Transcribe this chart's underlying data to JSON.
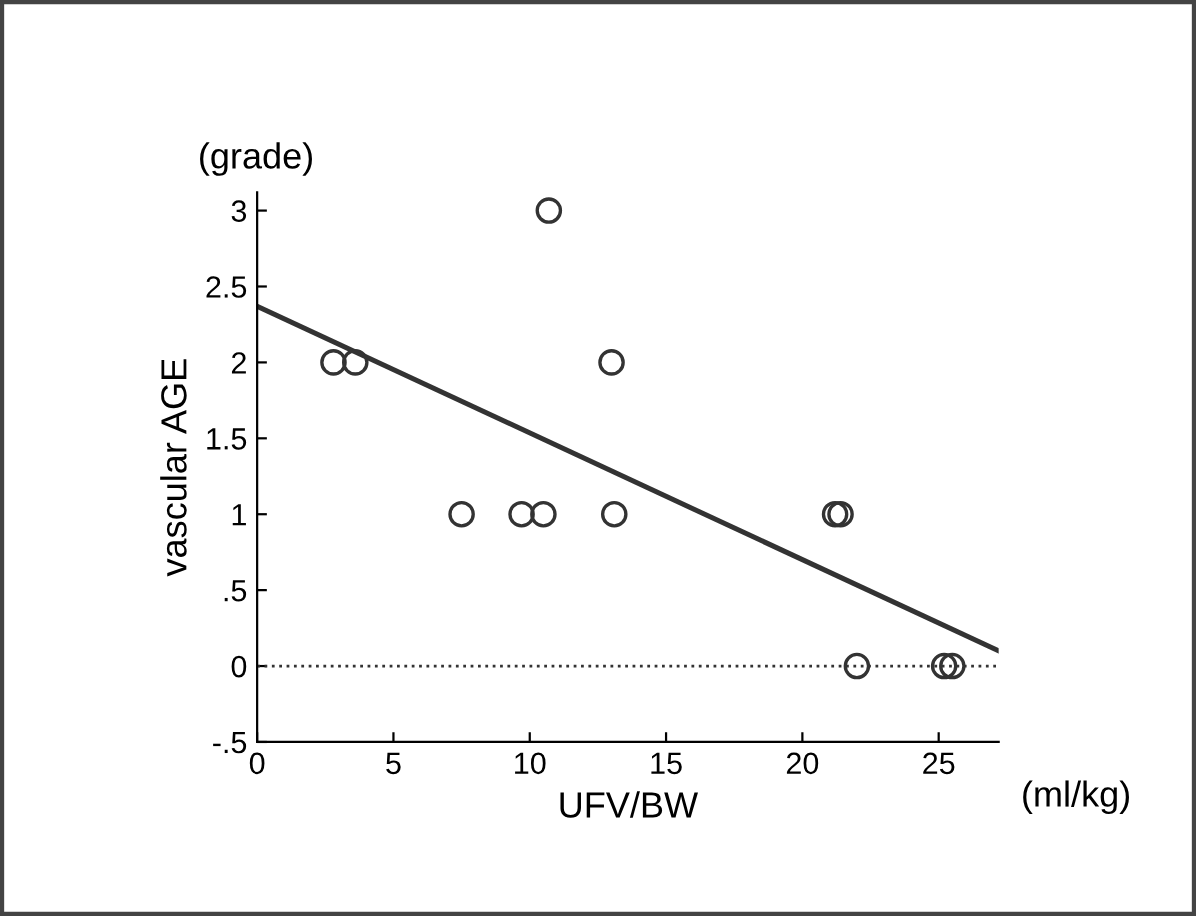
{
  "chart_data": {
    "type": "scatter",
    "xlabel": "UFV/BW",
    "ylabel": "vascular AGE",
    "annotations": [
      "(grade)",
      "(ml/kg)"
    ],
    "x": [
      2.8,
      3.6,
      7.5,
      9.7,
      10.5,
      10.7,
      13.0,
      13.1,
      21.2,
      21.4,
      22.0,
      25.2,
      25.5
    ],
    "series": [
      {
        "color": "#333333",
        "marker": "circle",
        "values": [
          2,
          2,
          1,
          1,
          1,
          3,
          2,
          1,
          1,
          1,
          0,
          0,
          0
        ]
      },
      {
        "type": "line",
        "color": "#333333",
        "x": [
          0,
          27.2
        ],
        "values": [
          2.37,
          0.1
        ]
      }
    ],
    "xlim": [
      0,
      27.2
    ],
    "ylim": [
      -0.5,
      3.12
    ],
    "xticks": [
      0,
      5,
      10,
      15,
      20,
      25
    ],
    "yticks": [
      3,
      2.5,
      2,
      1.5,
      1,
      {
        "value": 0.5,
        "label": ".5"
      },
      0,
      {
        "value": -0.5,
        "label": "-.5"
      }
    ],
    "ref_lines": [
      {
        "axis": "y",
        "value": 0,
        "line_style": "dotted",
        "color": "#333333"
      }
    ],
    "grid": false,
    "legend": false
  }
}
